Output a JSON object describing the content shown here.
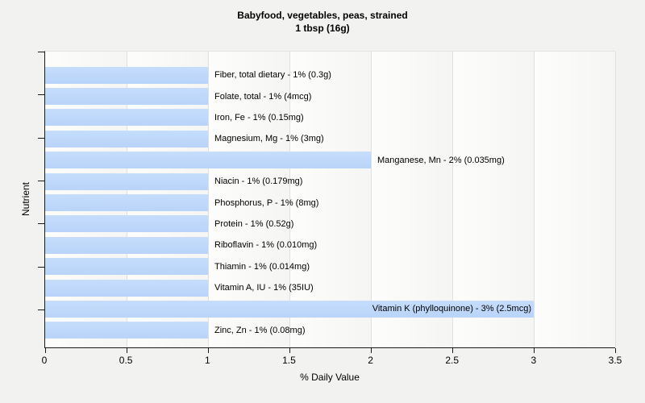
{
  "colors": {
    "page_background": "#f2f2f0",
    "plot_background": "#fafaf8",
    "bar_fill": "#bed8fa",
    "gridline": "#e0e0de",
    "axis": "#1a1a1a",
    "text": "#000000"
  },
  "chart_data": {
    "type": "bar",
    "orientation": "horizontal",
    "title": "Babyfood, vegetables, peas, strained",
    "subtitle": "1 tbsp (16g)",
    "xlabel": "% Daily Value",
    "ylabel": "Nutrient",
    "xlim": [
      0,
      3.5
    ],
    "x_tick_labels": [
      "0",
      "0.5",
      "1",
      "1.5",
      "2",
      "2.5",
      "3",
      "3.5"
    ],
    "x_tick_values": [
      0,
      0.5,
      1,
      1.5,
      2,
      2.5,
      3,
      3.5
    ],
    "grid": "vertical gridlines every 0.5, light gray",
    "legend": "none",
    "y_tick_count": 7,
    "bars": [
      {
        "nutrient": "Fiber, total dietary",
        "percent": 1,
        "amount": "0.3g",
        "value": 1,
        "label": "Fiber, total dietary - 1% (0.3g)",
        "label_inside": false
      },
      {
        "nutrient": "Folate, total",
        "percent": 1,
        "amount": "4mcg",
        "value": 1,
        "label": "Folate, total - 1% (4mcg)",
        "label_inside": false
      },
      {
        "nutrient": "Iron, Fe",
        "percent": 1,
        "amount": "0.15mg",
        "value": 1,
        "label": "Iron, Fe - 1% (0.15mg)",
        "label_inside": false
      },
      {
        "nutrient": "Magnesium, Mg",
        "percent": 1,
        "amount": "3mg",
        "value": 1,
        "label": "Magnesium, Mg - 1% (3mg)",
        "label_inside": false
      },
      {
        "nutrient": "Manganese, Mn",
        "percent": 2,
        "amount": "0.035mg",
        "value": 2,
        "label": "Manganese, Mn - 2% (0.035mg)",
        "label_inside": false
      },
      {
        "nutrient": "Niacin",
        "percent": 1,
        "amount": "0.179mg",
        "value": 1,
        "label": "Niacin - 1% (0.179mg)",
        "label_inside": false
      },
      {
        "nutrient": "Phosphorus, P",
        "percent": 1,
        "amount": "8mg",
        "value": 1,
        "label": "Phosphorus, P - 1% (8mg)",
        "label_inside": false
      },
      {
        "nutrient": "Protein",
        "percent": 1,
        "amount": "0.52g",
        "value": 1,
        "label": "Protein - 1% (0.52g)",
        "label_inside": false
      },
      {
        "nutrient": "Riboflavin",
        "percent": 1,
        "amount": "0.010mg",
        "value": 1,
        "label": "Riboflavin - 1% (0.010mg)",
        "label_inside": false
      },
      {
        "nutrient": "Thiamin",
        "percent": 1,
        "amount": "0.014mg",
        "value": 1,
        "label": "Thiamin - 1% (0.014mg)",
        "label_inside": false
      },
      {
        "nutrient": "Vitamin A, IU",
        "percent": 1,
        "amount": "35IU",
        "value": 1,
        "label": "Vitamin A, IU - 1% (35IU)",
        "label_inside": false
      },
      {
        "nutrient": "Vitamin K (phylloquinone)",
        "percent": 3,
        "amount": "2.5mcg",
        "value": 3,
        "label": "Vitamin K (phylloquinone) - 3% (2.5mcg)",
        "label_inside": true
      },
      {
        "nutrient": "Zinc, Zn",
        "percent": 1,
        "amount": "0.08mg",
        "value": 1,
        "label": "Zinc, Zn - 1% (0.08mg)",
        "label_inside": false
      }
    ]
  }
}
